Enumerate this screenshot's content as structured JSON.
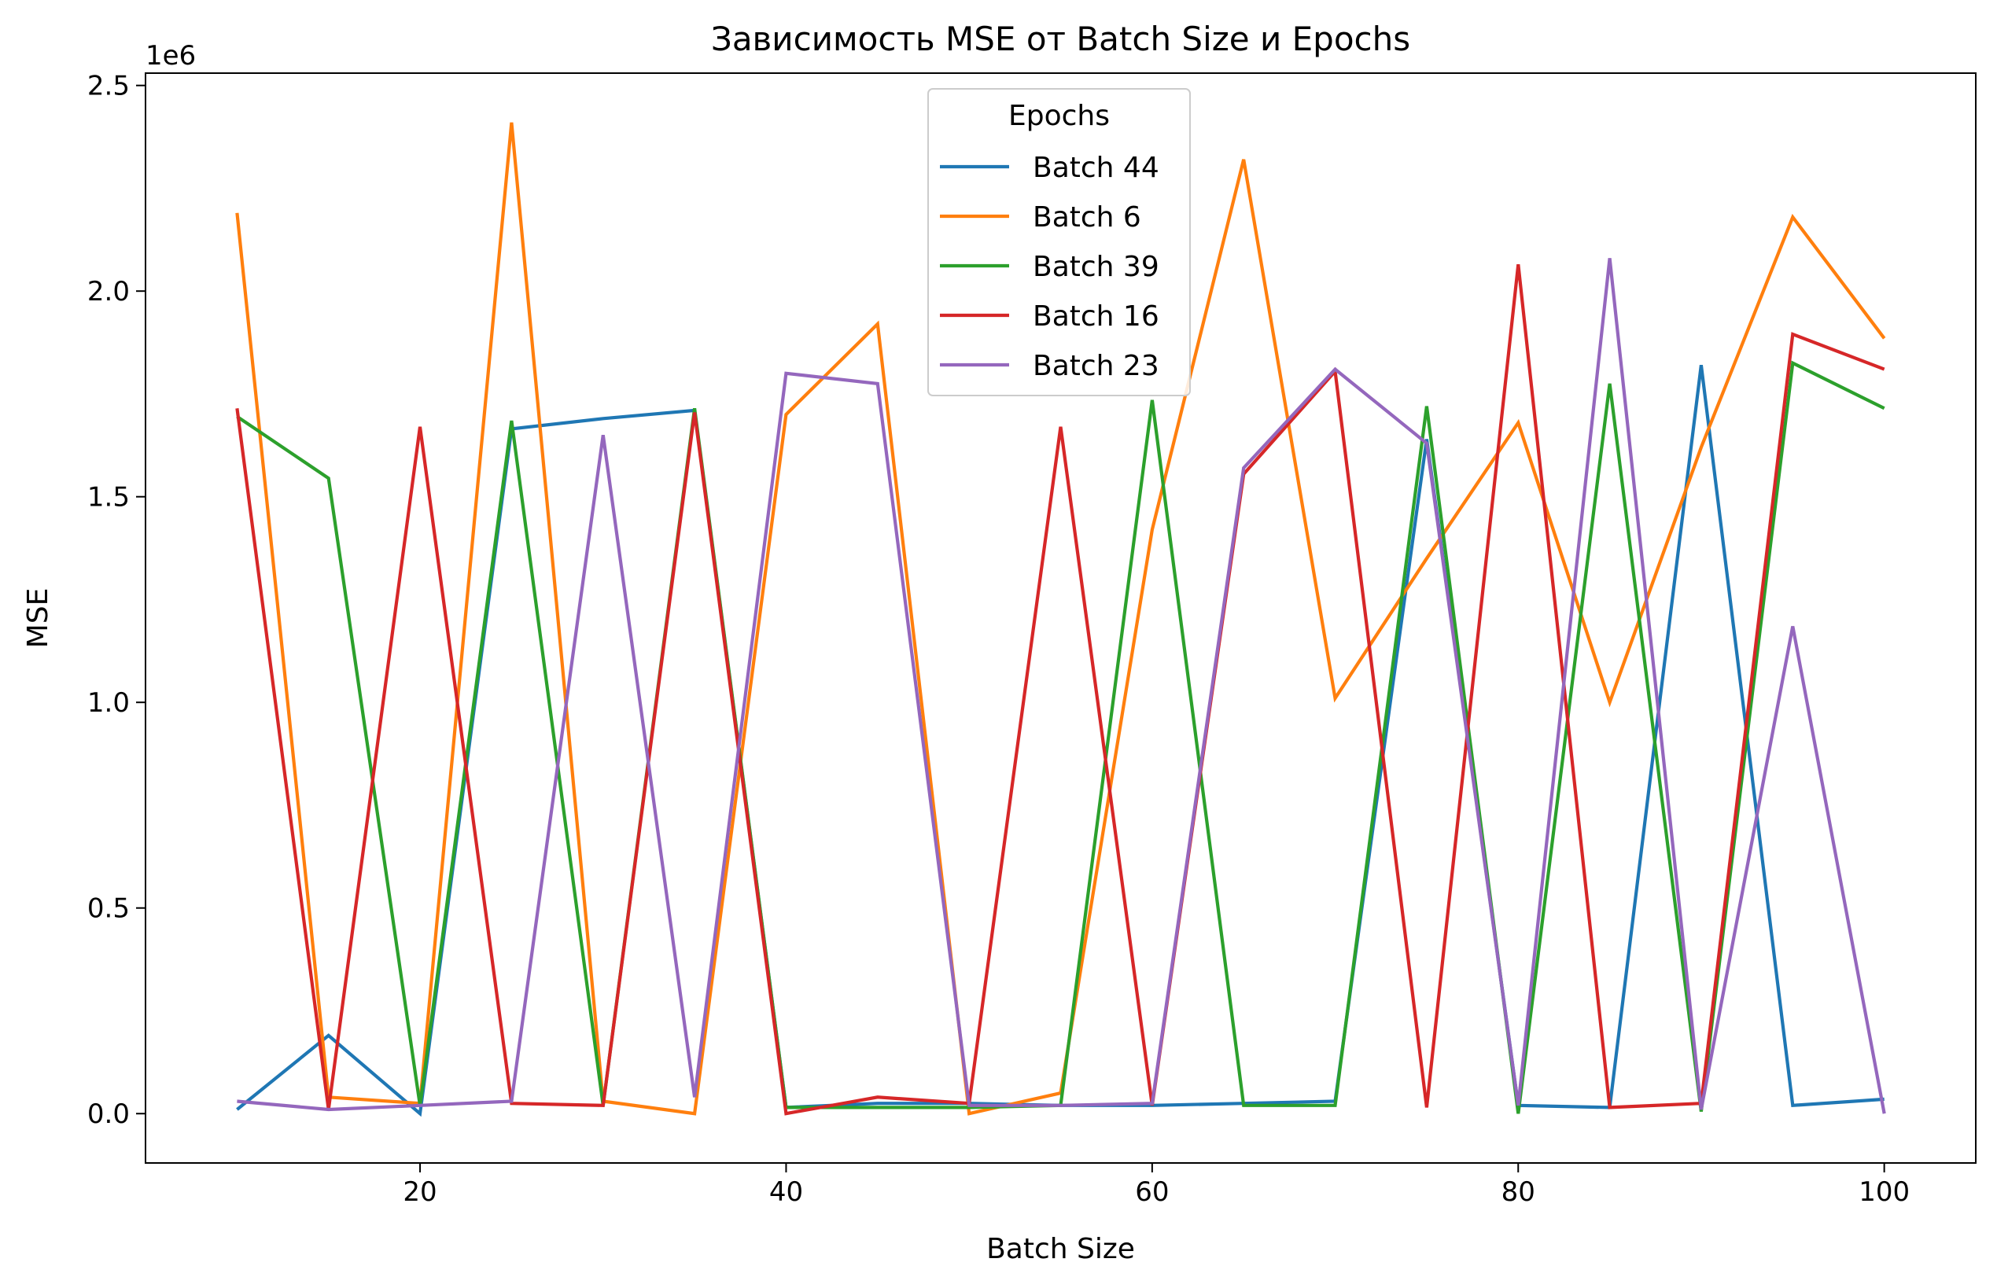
{
  "chart_data": {
    "type": "line",
    "title": "Зависимость MSE от Batch Size и Epochs",
    "xlabel": "Batch Size",
    "ylabel": "MSE",
    "y_offset_label": "1e6",
    "xlim": [
      5,
      105
    ],
    "ylim": [
      -120000,
      2530000
    ],
    "x_ticks": [
      20,
      40,
      60,
      80,
      100
    ],
    "x_tick_labels": [
      "20",
      "40",
      "60",
      "80",
      "100"
    ],
    "y_ticks": [
      0,
      500000,
      1000000,
      1500000,
      2000000,
      2500000
    ],
    "y_tick_labels": [
      "0.0",
      "0.5",
      "1.0",
      "1.5",
      "2.0",
      "2.5"
    ],
    "grid": false,
    "legend_title": "Epochs",
    "legend_position": "top-center",
    "x": [
      10,
      15,
      20,
      25,
      30,
      35,
      40,
      45,
      50,
      55,
      60,
      65,
      70,
      75,
      80,
      85,
      90,
      95,
      100
    ],
    "series": [
      {
        "name": "Batch 44",
        "color": "#1f77b4",
        "values": [
          10000,
          190000,
          0,
          1665000,
          1690000,
          1710000,
          15000,
          25000,
          25000,
          20000,
          20000,
          25000,
          30000,
          1640000,
          20000,
          15000,
          1820000,
          20000,
          35000
        ]
      },
      {
        "name": "Batch 6",
        "color": "#ff7f0e",
        "values": [
          2190000,
          40000,
          25000,
          2410000,
          30000,
          0,
          1700000,
          1920000,
          0,
          50000,
          1420000,
          2320000,
          1010000,
          1350000,
          1680000,
          1000000,
          1620000,
          2180000,
          1885000
        ]
      },
      {
        "name": "Batch 39",
        "color": "#2ca02c",
        "values": [
          1695000,
          1545000,
          20000,
          1685000,
          20000,
          1715000,
          15000,
          15000,
          15000,
          20000,
          1735000,
          20000,
          20000,
          1720000,
          0,
          1775000,
          5000,
          1825000,
          1715000
        ]
      },
      {
        "name": "Batch 16",
        "color": "#d62728",
        "values": [
          1715000,
          10000,
          1670000,
          25000,
          20000,
          1705000,
          0,
          40000,
          25000,
          1670000,
          20000,
          1555000,
          1805000,
          15000,
          2065000,
          15000,
          25000,
          1895000,
          1810000
        ]
      },
      {
        "name": "Batch 23",
        "color": "#9467bd",
        "values": [
          30000,
          10000,
          20000,
          30000,
          1650000,
          40000,
          1800000,
          1775000,
          20000,
          20000,
          25000,
          1570000,
          1810000,
          1630000,
          20000,
          2080000,
          10000,
          1185000,
          0
        ]
      }
    ]
  }
}
